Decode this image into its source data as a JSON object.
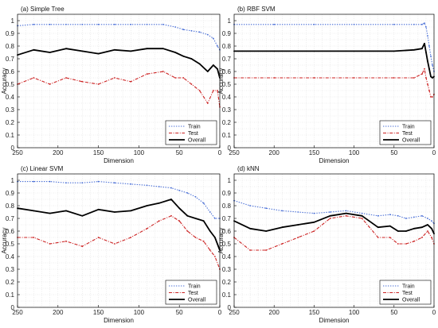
{
  "colors": {
    "train": "#4a6fd6",
    "test": "#cc2222",
    "overall": "#000000",
    "grid": "#dddddd",
    "band": "#f7c9c9"
  },
  "legend": {
    "train": "Train",
    "test": "Test",
    "overall": "Overall"
  },
  "chart_data": [
    {
      "type": "line",
      "title": "(a) Simple Tree",
      "xlabel": "Dimension",
      "ylabel": "Accuracy",
      "xlim": [
        250,
        0
      ],
      "ylim": [
        0,
        1.05
      ],
      "x_reversed": true,
      "grid": true,
      "legend_position": "bottom-right",
      "xticks": [
        250,
        200,
        150,
        100,
        50,
        0
      ],
      "yticks": [
        0,
        0.1,
        0.2,
        0.3,
        0.4,
        0.5,
        0.6,
        0.7,
        0.8,
        0.9,
        1
      ],
      "x": [
        250,
        230,
        210,
        190,
        170,
        150,
        130,
        110,
        90,
        70,
        55,
        45,
        35,
        25,
        15,
        8,
        3,
        0
      ],
      "series": [
        {
          "name": "Train",
          "style": "dotted",
          "values": [
            0.96,
            0.97,
            0.97,
            0.97,
            0.97,
            0.97,
            0.97,
            0.97,
            0.97,
            0.97,
            0.95,
            0.93,
            0.92,
            0.91,
            0.89,
            0.86,
            0.8,
            0.77
          ]
        },
        {
          "name": "Test",
          "style": "dashdot",
          "values": [
            0.5,
            0.55,
            0.5,
            0.55,
            0.52,
            0.5,
            0.55,
            0.52,
            0.58,
            0.6,
            0.55,
            0.55,
            0.5,
            0.45,
            0.35,
            0.45,
            0.45,
            0.32
          ]
        },
        {
          "name": "Overall",
          "style": "solid",
          "values": [
            0.73,
            0.77,
            0.75,
            0.78,
            0.76,
            0.74,
            0.77,
            0.76,
            0.78,
            0.78,
            0.75,
            0.72,
            0.7,
            0.66,
            0.6,
            0.65,
            0.62,
            0.55
          ]
        }
      ]
    },
    {
      "type": "line",
      "title": "(b) RBF SVM",
      "xlabel": "Dimension",
      "ylabel": "Accuracy",
      "xlim": [
        250,
        0
      ],
      "ylim": [
        0,
        1.05
      ],
      "x_reversed": true,
      "grid": true,
      "legend_position": "bottom-right",
      "xticks": [
        250,
        200,
        150,
        100,
        50,
        0
      ],
      "yticks": [
        0,
        0.1,
        0.2,
        0.3,
        0.4,
        0.5,
        0.6,
        0.7,
        0.8,
        0.9,
        1
      ],
      "x": [
        250,
        200,
        150,
        100,
        50,
        25,
        15,
        12,
        10,
        8,
        6,
        4,
        2,
        0
      ],
      "series": [
        {
          "name": "Train",
          "style": "dotted",
          "values": [
            0.97,
            0.97,
            0.97,
            0.97,
            0.97,
            0.97,
            0.97,
            0.98,
            0.95,
            0.88,
            0.8,
            0.72,
            0.65,
            0.6
          ]
        },
        {
          "name": "Test",
          "style": "dashdot",
          "values": [
            0.55,
            0.55,
            0.55,
            0.55,
            0.55,
            0.55,
            0.58,
            0.62,
            0.55,
            0.5,
            0.45,
            0.4,
            0.4,
            0.42
          ]
        },
        {
          "name": "Overall",
          "style": "solid",
          "values": [
            0.76,
            0.76,
            0.76,
            0.76,
            0.76,
            0.77,
            0.78,
            0.82,
            0.75,
            0.68,
            0.62,
            0.56,
            0.55,
            0.56
          ]
        }
      ]
    },
    {
      "type": "line",
      "title": "(c) Linear SVM",
      "xlabel": "Dimension",
      "ylabel": "Accuracy",
      "xlim": [
        250,
        0
      ],
      "ylim": [
        0,
        1.05
      ],
      "x_reversed": true,
      "grid": true,
      "legend_position": "bottom-right",
      "xticks": [
        250,
        200,
        150,
        100,
        50,
        0
      ],
      "yticks": [
        0,
        0.1,
        0.2,
        0.3,
        0.4,
        0.5,
        0.6,
        0.7,
        0.8,
        0.9,
        1
      ],
      "x": [
        250,
        230,
        210,
        190,
        170,
        150,
        130,
        110,
        90,
        75,
        60,
        50,
        40,
        30,
        20,
        12,
        6,
        0
      ],
      "series": [
        {
          "name": "Train",
          "style": "dotted",
          "values": [
            0.99,
            0.99,
            0.99,
            0.98,
            0.98,
            0.99,
            0.98,
            0.97,
            0.96,
            0.95,
            0.94,
            0.92,
            0.9,
            0.87,
            0.82,
            0.75,
            0.7,
            0.7
          ]
        },
        {
          "name": "Test",
          "style": "dashdot",
          "values": [
            0.55,
            0.55,
            0.5,
            0.52,
            0.48,
            0.55,
            0.5,
            0.55,
            0.62,
            0.68,
            0.72,
            0.68,
            0.6,
            0.55,
            0.52,
            0.45,
            0.4,
            0.3
          ]
        },
        {
          "name": "Overall",
          "style": "solid",
          "values": [
            0.78,
            0.76,
            0.74,
            0.76,
            0.72,
            0.77,
            0.75,
            0.76,
            0.8,
            0.82,
            0.85,
            0.78,
            0.72,
            0.7,
            0.68,
            0.6,
            0.55,
            0.45
          ]
        }
      ]
    },
    {
      "type": "line",
      "title": "(d) kNN",
      "xlabel": "Dimension",
      "ylabel": "Accuracy",
      "xlim": [
        250,
        0
      ],
      "ylim": [
        0,
        1.05
      ],
      "x_reversed": true,
      "grid": true,
      "legend_position": "bottom-right",
      "xticks": [
        250,
        200,
        150,
        100,
        50,
        0
      ],
      "yticks": [
        0,
        0.1,
        0.2,
        0.3,
        0.4,
        0.5,
        0.6,
        0.7,
        0.8,
        0.9,
        1
      ],
      "x": [
        250,
        230,
        210,
        190,
        170,
        150,
        130,
        110,
        90,
        70,
        55,
        45,
        35,
        25,
        15,
        8,
        3,
        0
      ],
      "series": [
        {
          "name": "Train",
          "style": "dotted",
          "values": [
            0.84,
            0.8,
            0.78,
            0.76,
            0.75,
            0.74,
            0.75,
            0.76,
            0.74,
            0.72,
            0.73,
            0.72,
            0.7,
            0.71,
            0.72,
            0.7,
            0.68,
            0.66
          ]
        },
        {
          "name": "Test",
          "style": "dashdot",
          "values": [
            0.55,
            0.45,
            0.45,
            0.5,
            0.55,
            0.6,
            0.7,
            0.72,
            0.7,
            0.55,
            0.55,
            0.5,
            0.5,
            0.52,
            0.55,
            0.6,
            0.55,
            0.5
          ]
        },
        {
          "name": "Overall",
          "style": "solid",
          "values": [
            0.68,
            0.62,
            0.6,
            0.63,
            0.65,
            0.67,
            0.72,
            0.74,
            0.72,
            0.63,
            0.64,
            0.6,
            0.6,
            0.62,
            0.63,
            0.65,
            0.62,
            0.58
          ]
        }
      ]
    }
  ]
}
